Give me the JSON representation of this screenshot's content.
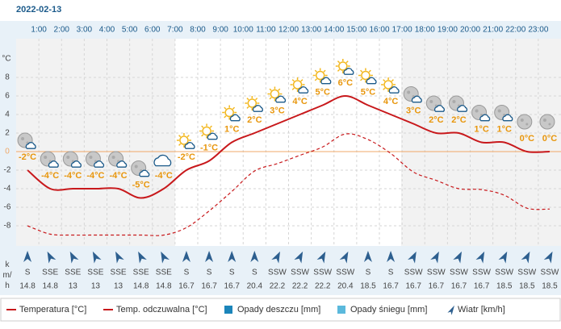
{
  "chart_data": {
    "type": "line",
    "title": "2022-02-13",
    "y_label": "°C",
    "categories": [
      null,
      "1:00",
      "2:00",
      "3:00",
      "4:00",
      "5:00",
      "6:00",
      "7:00",
      "8:00",
      "9:00",
      "10:00",
      "11:00",
      "12:00",
      "13:00",
      "14:00",
      "15:00",
      "16:00",
      "17:00",
      "18:00",
      "19:00",
      "20:00",
      "21:00",
      "22:00",
      "23:00"
    ],
    "ylim": [
      -10,
      12
    ],
    "yticks": [
      -8,
      -6,
      -4,
      -2,
      0,
      2,
      4,
      6,
      8
    ],
    "grid": true,
    "series": [
      {
        "name": "Temperatura [°C]",
        "color": "#c8181b",
        "dashed": false,
        "values": [
          -2,
          -4,
          -4,
          -4,
          -4,
          -5,
          -4,
          -2,
          -1,
          1,
          2,
          3,
          4,
          5,
          6,
          5,
          4,
          3,
          2,
          2,
          1,
          1,
          0,
          0
        ],
        "value_labels": [
          "-2°C",
          "-4°C",
          "-4°C",
          "-4°C",
          "-4°C",
          "-5°C",
          "-4°C",
          "-2°C",
          "-1°C",
          "1°C",
          "2°C",
          "3°C",
          "4°C",
          "5°C",
          "6°C",
          "5°C",
          "4°C",
          "3°C",
          "2°C",
          "2°C",
          "1°C",
          "1°C",
          "0°C",
          "0°C"
        ]
      },
      {
        "name": "Temp. odczuwalna [°C]",
        "color": "#c8181b",
        "dashed": true,
        "values": [
          -8,
          -8.9,
          -9,
          -9,
          -9,
          -9,
          -9,
          -8.2,
          -6.4,
          -4.3,
          -2.1,
          -1.3,
          -0.4,
          0.5,
          1.9,
          1.3,
          -0.2,
          -2.2,
          -3.1,
          -4,
          -4.1,
          -4.7,
          -6.1,
          -6.2
        ]
      }
    ],
    "precipitation_legend": [
      {
        "name": "Opady deszczu [mm]",
        "color": "#1b85ba"
      },
      {
        "name": "Opady śniegu [mm]",
        "color": "#5bb9dc"
      }
    ],
    "wind": {
      "name": "Wiatr [km/h]",
      "unit": "km/h",
      "color": "#2d5f8f",
      "directions": [
        "S",
        "SSE",
        "SSE",
        "SSE",
        "SSE",
        "SSE",
        "SSE",
        "S",
        "S",
        "S",
        "S",
        "SSW",
        "SSW",
        "SSW",
        "SSW",
        "S",
        "S",
        "SSW",
        "SSW",
        "SSW",
        "SSW",
        "SSW",
        "SSW",
        "SSW"
      ],
      "speeds": [
        14.8,
        14.8,
        13,
        13,
        13,
        14.8,
        14.8,
        16.7,
        16.7,
        16.7,
        20.4,
        22.2,
        22.2,
        22.2,
        20.4,
        18.5,
        16.7,
        16.7,
        16.7,
        16.7,
        16.7,
        18.5,
        18.5,
        18.5
      ]
    }
  }
}
